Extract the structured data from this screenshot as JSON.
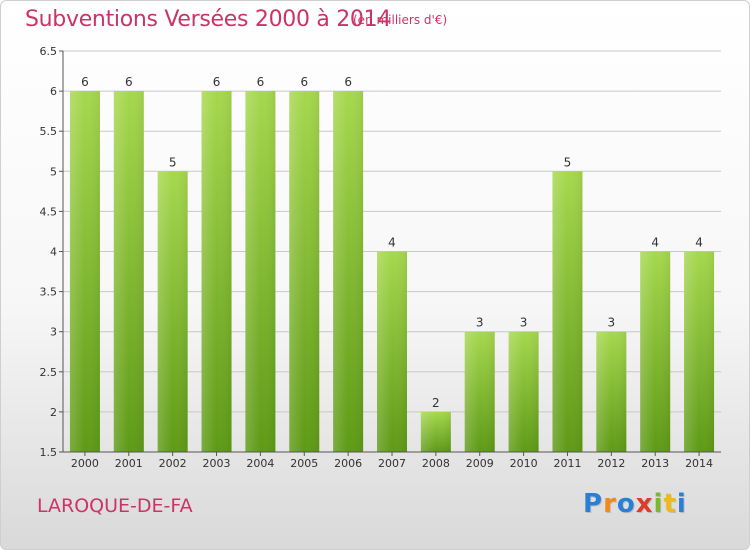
{
  "header": {
    "title": "Subventions Versées 2000 à 2014",
    "subtitle": "(en milliers d'€)"
  },
  "footer": {
    "commune": "LAROQUE-DE-FA",
    "logo_letters": [
      {
        "ch": "P",
        "color": "#2a7fd4"
      },
      {
        "ch": "r",
        "color": "#f08a1c"
      },
      {
        "ch": "o",
        "color": "#2a7fd4"
      },
      {
        "ch": "x",
        "color": "#e03a2a"
      },
      {
        "ch": "i",
        "color": "#7ab82e"
      },
      {
        "ch": "t",
        "color": "#f0b81c"
      },
      {
        "ch": "i",
        "color": "#2a7fd4"
      }
    ]
  },
  "chart_data": {
    "type": "bar",
    "title": "Subventions Versées 2000 à 2014",
    "subtitle": "(en milliers d'€)",
    "categories": [
      "2000",
      "2001",
      "2002",
      "2003",
      "2004",
      "2005",
      "2006",
      "2007",
      "2008",
      "2009",
      "2010",
      "2011",
      "2012",
      "2013",
      "2014"
    ],
    "values": [
      6,
      6,
      5,
      6,
      6,
      6,
      6,
      4,
      2,
      3,
      3,
      5,
      3,
      4,
      4
    ],
    "data_labels": [
      "6",
      "6",
      "5",
      "6",
      "6",
      "6",
      "6",
      "4",
      "2",
      "3",
      "3",
      "5",
      "3",
      "4",
      "4"
    ],
    "ylim": [
      1.5,
      6.5
    ],
    "yticks": [
      1.5,
      2,
      2.5,
      3,
      3.5,
      4,
      4.5,
      5,
      5.5,
      6,
      6.5
    ],
    "ytick_labels": [
      "1.5",
      "2",
      "2.5",
      "3",
      "3.5",
      "4",
      "4.5",
      "5",
      "5.5",
      "6",
      "6.5"
    ],
    "grid": true,
    "colors": {
      "bar_top": "#a6d84e",
      "bar_bottom": "#5e9a16",
      "grid": "#c8c8c8",
      "axis": "#555555",
      "text": "#333333"
    }
  }
}
